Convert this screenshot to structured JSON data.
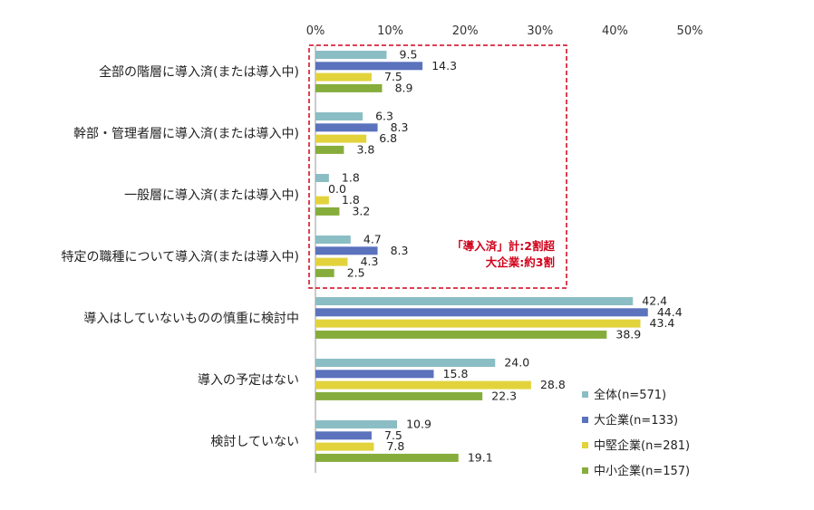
{
  "chart_data": {
    "type": "bar",
    "orientation": "horizontal",
    "categories": [
      "全部の階層に導入済(または導入中)",
      "幹部・管理者層に導入済(または導入中)",
      "一般層に導入済(または導入中)",
      "特定の職種について導入済(または導入中)",
      "導入はしていないものの慎重に検討中",
      "導入の予定はない",
      "検討していない"
    ],
    "series": [
      {
        "name": "全体(n=571)",
        "color": "#8bbdc4",
        "values": [
          9.5,
          6.3,
          1.8,
          4.7,
          42.4,
          24.0,
          10.9
        ]
      },
      {
        "name": "大企業(n=133)",
        "color": "#5b72bd",
        "values": [
          14.3,
          8.3,
          0.0,
          8.3,
          44.4,
          15.8,
          7.5
        ]
      },
      {
        "name": "中堅企業(n=281)",
        "color": "#e2d33c",
        "values": [
          7.5,
          6.8,
          1.8,
          4.3,
          43.4,
          28.8,
          7.8
        ]
      },
      {
        "name": "中小企業(n=157)",
        "color": "#86ad3c",
        "values": [
          8.9,
          3.8,
          3.2,
          2.5,
          38.9,
          22.3,
          19.1
        ]
      }
    ],
    "xlim": [
      0,
      50
    ],
    "xticks": [
      "0%",
      "10%",
      "20%",
      "30%",
      "40%",
      "50%"
    ],
    "grid": false,
    "legend_position": "bottom-right",
    "annotation": {
      "lines": [
        "「導入済」計:2割超",
        "大企業:約3割"
      ],
      "color": "#d0021b",
      "box_style": "dashed"
    }
  }
}
